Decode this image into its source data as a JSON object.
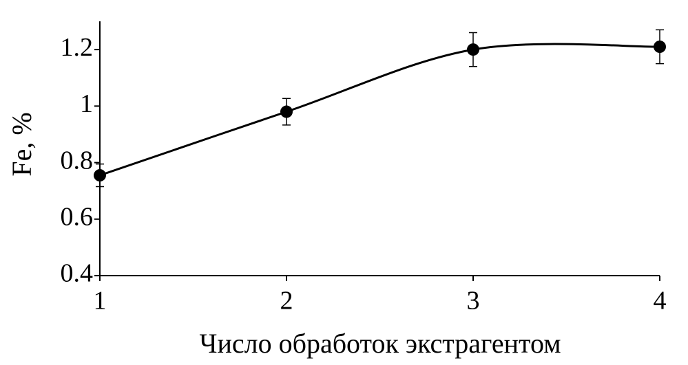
{
  "chart_data": {
    "type": "line",
    "x_label": "Число обработок экстрагентом",
    "y_label": "Fe, %",
    "x": [
      1,
      2,
      3,
      4
    ],
    "values": [
      0.755,
      0.98,
      1.2,
      1.21
    ],
    "errors": [
      0.04,
      0.047,
      0.06,
      0.06
    ],
    "color": "#000000",
    "smooth": true,
    "grid": false,
    "xlim": [
      1,
      4
    ],
    "xticks": [
      1,
      2,
      3,
      4
    ],
    "ylim": [
      0.4,
      1.3
    ],
    "yticks": [
      0.4,
      0.6,
      0.8,
      1,
      1.2
    ]
  }
}
